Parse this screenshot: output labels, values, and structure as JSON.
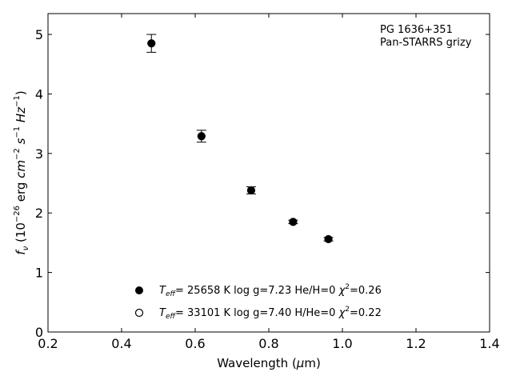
{
  "chart_data": {
    "type": "scatter",
    "title": "",
    "xlabel_main": "Wavelength (",
    "xlabel_unit": "μ",
    "xlabel_tail": "m)",
    "ylabel_main": "f",
    "ylabel_sub": "ν",
    "ylabel_rest": " (10",
    "ylabel_exp1": "−26",
    "ylabel_rest2": " erg ",
    "ylabel_cm": "cm",
    "ylabel_exp2": "−2",
    "ylabel_s": " s",
    "ylabel_exp3": "−1",
    "ylabel_hz": " Hz",
    "ylabel_exp4": "−1",
    "ylabel_close": ")",
    "xlim": [
      0.2,
      1.4
    ],
    "ylim": [
      0,
      5.35
    ],
    "x_ticks": [
      0.2,
      0.4,
      0.6,
      0.8,
      1.0,
      1.2,
      1.4
    ],
    "x_tick_labels": [
      "0.2",
      "0.4",
      "0.6",
      "0.8",
      "1.0",
      "1.2",
      "1.4"
    ],
    "y_ticks": [
      0,
      1,
      2,
      3,
      4,
      5
    ],
    "y_tick_labels": [
      "0",
      "1",
      "2",
      "3",
      "4",
      "5"
    ],
    "annotation_line1": "PG 1636+351",
    "annotation_line2": "Pan-STARRS grizy",
    "grid": false,
    "legend_position": "bottom-center",
    "series": [
      {
        "marker": "filled-circle",
        "points": [
          {
            "x": 0.481,
            "y": 4.85,
            "err": 0.15
          },
          {
            "x": 0.617,
            "y": 3.29,
            "err": 0.1
          },
          {
            "x": 0.752,
            "y": 2.38,
            "err": 0.06
          },
          {
            "x": 0.866,
            "y": 1.85,
            "err": 0.03
          },
          {
            "x": 0.962,
            "y": 1.56,
            "err": 0.03
          }
        ],
        "legend": {
          "t": "T",
          "eff": "eff",
          "temp": "= 25658 K  log g=7.23  He/H=0  ",
          "chi": "χ",
          "sq": "2",
          "val": "=0.26"
        }
      },
      {
        "marker": "open-circle",
        "points": [],
        "legend": {
          "t": "T",
          "eff": "eff",
          "temp": "= 33101 K  log g=7.40  H/He=0  ",
          "chi": "χ",
          "sq": "2",
          "val": "=0.22"
        }
      }
    ],
    "colors": {
      "marker": "#000000",
      "axes": "#000000",
      "background": "#ffffff"
    }
  }
}
